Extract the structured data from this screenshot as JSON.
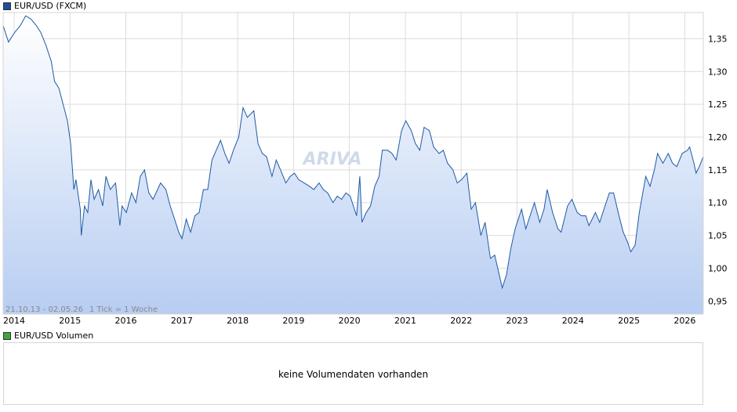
{
  "legend": {
    "price_series": "EUR/USD (FXCM)",
    "volume_series": "EUR/USD Volumen",
    "price_color": "#1f4e9c",
    "volume_color": "#3fa63f"
  },
  "range_info": "21.10.13 - 02.05.26",
  "tick_info": "1 Tick = 1 Woche",
  "watermark": "ARIVA",
  "volume_message": "keine Volumendaten vorhanden",
  "chart_data": {
    "type": "area",
    "series": [
      {
        "name": "EUR/USD (FXCM)",
        "color": "#1f5aa6",
        "points": [
          [
            "2013-10-21",
            1.37
          ],
          [
            "2013-11-25",
            1.345
          ],
          [
            "2014-01-06",
            1.36
          ],
          [
            "2014-02-10",
            1.37
          ],
          [
            "2014-03-17",
            1.385
          ],
          [
            "2014-04-21",
            1.38
          ],
          [
            "2014-05-26",
            1.37
          ],
          [
            "2014-06-23",
            1.36
          ],
          [
            "2014-07-28",
            1.34
          ],
          [
            "2014-09-01",
            1.315
          ],
          [
            "2014-09-22",
            1.285
          ],
          [
            "2014-10-20",
            1.275
          ],
          [
            "2014-11-17",
            1.25
          ],
          [
            "2014-12-15",
            1.225
          ],
          [
            "2015-01-05",
            1.19
          ],
          [
            "2015-01-26",
            1.12
          ],
          [
            "2015-02-09",
            1.135
          ],
          [
            "2015-03-09",
            1.09
          ],
          [
            "2015-03-16",
            1.05
          ],
          [
            "2015-04-06",
            1.095
          ],
          [
            "2015-04-27",
            1.085
          ],
          [
            "2015-05-18",
            1.135
          ],
          [
            "2015-06-08",
            1.105
          ],
          [
            "2015-07-06",
            1.12
          ],
          [
            "2015-08-03",
            1.095
          ],
          [
            "2015-08-24",
            1.14
          ],
          [
            "2015-09-21",
            1.12
          ],
          [
            "2015-10-26",
            1.13
          ],
          [
            "2015-11-23",
            1.065
          ],
          [
            "2015-12-07",
            1.095
          ],
          [
            "2016-01-04",
            1.085
          ],
          [
            "2016-02-08",
            1.115
          ],
          [
            "2016-03-07",
            1.1
          ],
          [
            "2016-04-04",
            1.14
          ],
          [
            "2016-05-02",
            1.15
          ],
          [
            "2016-05-30",
            1.115
          ],
          [
            "2016-06-27",
            1.105
          ],
          [
            "2016-08-15",
            1.13
          ],
          [
            "2016-09-19",
            1.12
          ],
          [
            "2016-10-17",
            1.095
          ],
          [
            "2016-11-14",
            1.075
          ],
          [
            "2016-12-12",
            1.055
          ],
          [
            "2017-01-02",
            1.045
          ],
          [
            "2017-01-30",
            1.075
          ],
          [
            "2017-02-27",
            1.055
          ],
          [
            "2017-03-27",
            1.08
          ],
          [
            "2017-04-24",
            1.085
          ],
          [
            "2017-05-22",
            1.12
          ],
          [
            "2017-06-19",
            1.12
          ],
          [
            "2017-07-17",
            1.165
          ],
          [
            "2017-08-14",
            1.18
          ],
          [
            "2017-09-11",
            1.195
          ],
          [
            "2017-10-09",
            1.175
          ],
          [
            "2017-11-06",
            1.16
          ],
          [
            "2017-12-04",
            1.18
          ],
          [
            "2018-01-08",
            1.2
          ],
          [
            "2018-02-05",
            1.245
          ],
          [
            "2018-03-05",
            1.23
          ],
          [
            "2018-04-16",
            1.24
          ],
          [
            "2018-05-14",
            1.19
          ],
          [
            "2018-06-11",
            1.175
          ],
          [
            "2018-07-09",
            1.17
          ],
          [
            "2018-08-13",
            1.14
          ],
          [
            "2018-09-10",
            1.165
          ],
          [
            "2018-10-08",
            1.15
          ],
          [
            "2018-11-12",
            1.13
          ],
          [
            "2018-12-10",
            1.14
          ],
          [
            "2019-01-07",
            1.145
          ],
          [
            "2019-02-04",
            1.135
          ],
          [
            "2019-03-11",
            1.13
          ],
          [
            "2019-04-15",
            1.125
          ],
          [
            "2019-05-13",
            1.12
          ],
          [
            "2019-06-17",
            1.13
          ],
          [
            "2019-07-15",
            1.12
          ],
          [
            "2019-08-12",
            1.115
          ],
          [
            "2019-09-16",
            1.1
          ],
          [
            "2019-10-14",
            1.11
          ],
          [
            "2019-11-11",
            1.105
          ],
          [
            "2019-12-09",
            1.115
          ],
          [
            "2020-01-06",
            1.11
          ],
          [
            "2020-02-17",
            1.08
          ],
          [
            "2020-03-09",
            1.14
          ],
          [
            "2020-03-23",
            1.07
          ],
          [
            "2020-04-20",
            1.085
          ],
          [
            "2020-05-18",
            1.095
          ],
          [
            "2020-06-15",
            1.125
          ],
          [
            "2020-07-13",
            1.14
          ],
          [
            "2020-08-03",
            1.18
          ],
          [
            "2020-09-07",
            1.18
          ],
          [
            "2020-10-05",
            1.175
          ],
          [
            "2020-11-02",
            1.165
          ],
          [
            "2020-12-07",
            1.21
          ],
          [
            "2021-01-04",
            1.225
          ],
          [
            "2021-02-08",
            1.21
          ],
          [
            "2021-03-08",
            1.19
          ],
          [
            "2021-04-05",
            1.18
          ],
          [
            "2021-05-03",
            1.215
          ],
          [
            "2021-06-07",
            1.21
          ],
          [
            "2021-07-05",
            1.185
          ],
          [
            "2021-08-09",
            1.175
          ],
          [
            "2021-09-06",
            1.18
          ],
          [
            "2021-10-04",
            1.16
          ],
          [
            "2021-11-08",
            1.15
          ],
          [
            "2021-12-06",
            1.13
          ],
          [
            "2022-01-03",
            1.135
          ],
          [
            "2022-02-07",
            1.145
          ],
          [
            "2022-03-07",
            1.09
          ],
          [
            "2022-04-04",
            1.1
          ],
          [
            "2022-05-09",
            1.05
          ],
          [
            "2022-06-06",
            1.07
          ],
          [
            "2022-07-11",
            1.015
          ],
          [
            "2022-08-08",
            1.02
          ],
          [
            "2022-09-26",
            0.97
          ],
          [
            "2022-10-24",
            0.99
          ],
          [
            "2022-11-21",
            1.03
          ],
          [
            "2022-12-19",
            1.06
          ],
          [
            "2023-01-30",
            1.09
          ],
          [
            "2023-02-27",
            1.06
          ],
          [
            "2023-03-27",
            1.08
          ],
          [
            "2023-04-24",
            1.1
          ],
          [
            "2023-05-29",
            1.07
          ],
          [
            "2023-06-26",
            1.09
          ],
          [
            "2023-07-17",
            1.12
          ],
          [
            "2023-08-21",
            1.085
          ],
          [
            "2023-09-25",
            1.06
          ],
          [
            "2023-10-16",
            1.055
          ],
          [
            "2023-11-27",
            1.095
          ],
          [
            "2023-12-25",
            1.105
          ],
          [
            "2024-01-29",
            1.085
          ],
          [
            "2024-02-26",
            1.08
          ],
          [
            "2024-03-25",
            1.08
          ],
          [
            "2024-04-15",
            1.065
          ],
          [
            "2024-05-27",
            1.085
          ],
          [
            "2024-06-24",
            1.07
          ],
          [
            "2024-07-22",
            1.09
          ],
          [
            "2024-08-26",
            1.115
          ],
          [
            "2024-09-23",
            1.115
          ],
          [
            "2024-10-28",
            1.08
          ],
          [
            "2024-11-25",
            1.055
          ],
          [
            "2024-12-23",
            1.04
          ],
          [
            "2025-01-13",
            1.025
          ],
          [
            "2025-02-10",
            1.035
          ],
          [
            "2025-03-10",
            1.085
          ],
          [
            "2025-04-21",
            1.14
          ],
          [
            "2025-05-19",
            1.125
          ],
          [
            "2025-06-16",
            1.15
          ],
          [
            "2025-07-07",
            1.175
          ],
          [
            "2025-08-11",
            1.16
          ],
          [
            "2025-09-15",
            1.175
          ],
          [
            "2025-10-13",
            1.16
          ],
          [
            "2025-11-10",
            1.155
          ],
          [
            "2025-12-15",
            1.175
          ],
          [
            "2026-01-19",
            1.18
          ],
          [
            "2026-02-02",
            1.185
          ],
          [
            "2026-03-02",
            1.16
          ],
          [
            "2026-03-16",
            1.145
          ],
          [
            "2026-04-06",
            1.155
          ],
          [
            "2026-05-02",
            1.17
          ]
        ]
      }
    ],
    "x_ticks": [
      "2014",
      "2015",
      "2016",
      "2017",
      "2018",
      "2019",
      "2020",
      "2021",
      "2022",
      "2023",
      "2024",
      "2025",
      "2026"
    ],
    "y_ticks": [
      "0,95",
      "1,00",
      "1,05",
      "1,10",
      "1,15",
      "1,20",
      "1,25",
      "1,30",
      "1,35"
    ],
    "ylim": [
      0.93,
      1.39
    ],
    "xlim": [
      "2013-10-21",
      "2026-05-02"
    ],
    "grid": true
  }
}
